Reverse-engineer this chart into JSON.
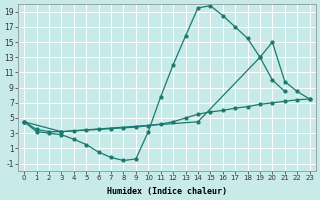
{
  "xlabel": "Humidex (Indice chaleur)",
  "bg_color": "#c8eae8",
  "grid_color": "#ffffff",
  "line_color": "#1a7a6e",
  "xlim": [
    -0.5,
    23.5
  ],
  "ylim": [
    -2,
    20
  ],
  "xticks": [
    0,
    1,
    2,
    3,
    4,
    5,
    6,
    7,
    8,
    9,
    10,
    11,
    12,
    13,
    14,
    15,
    16,
    17,
    18,
    19,
    20,
    21,
    22,
    23
  ],
  "yticks": [
    -1,
    1,
    3,
    5,
    7,
    9,
    11,
    13,
    15,
    17,
    19
  ],
  "line1_x": [
    0,
    1,
    2,
    3,
    4,
    5,
    6,
    7,
    8,
    9,
    10,
    11,
    12,
    13,
    14,
    15,
    16,
    17,
    18,
    19,
    20,
    21
  ],
  "line1_y": [
    4.5,
    3.2,
    3.0,
    2.8,
    2.2,
    1.5,
    0.5,
    -0.2,
    -0.6,
    -0.4,
    3.2,
    7.8,
    12.0,
    15.8,
    19.5,
    19.8,
    18.5,
    17.0,
    15.5,
    13.0,
    10.0,
    8.5
  ],
  "line2_x": [
    0,
    1,
    2,
    3,
    4,
    5,
    6,
    7,
    8,
    9,
    10,
    11,
    12,
    13,
    14,
    15,
    16,
    17,
    18,
    19,
    20,
    21,
    22,
    23
  ],
  "line2_y": [
    4.5,
    3.5,
    3.2,
    3.2,
    3.3,
    3.4,
    3.5,
    3.6,
    3.7,
    3.8,
    4.0,
    4.2,
    4.5,
    5.0,
    5.5,
    5.8,
    6.0,
    6.3,
    6.5,
    6.8,
    7.0,
    7.2,
    7.4,
    7.5
  ],
  "line3_x": [
    0,
    3,
    14,
    19,
    20,
    21,
    22,
    23
  ],
  "line3_y": [
    4.5,
    3.2,
    4.5,
    13.0,
    15.0,
    9.8,
    8.5,
    7.5
  ]
}
